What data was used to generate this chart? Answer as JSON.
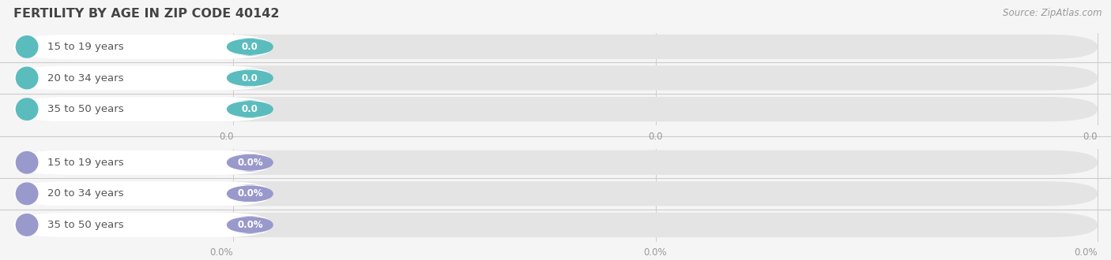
{
  "title": "FERTILITY BY AGE IN ZIP CODE 40142",
  "source": "Source: ZipAtlas.com",
  "background_color": "#f5f5f5",
  "figsize": [
    14.06,
    3.3
  ],
  "dpi": 100,
  "groups": [
    {
      "rows": [
        {
          "label": "15 to 19 years",
          "value_str": "0.0"
        },
        {
          "label": "20 to 34 years",
          "value_str": "0.0"
        },
        {
          "label": "35 to 50 years",
          "value_str": "0.0"
        }
      ],
      "circle_color": "#5bbcbd",
      "badge_color": "#5bbcbd",
      "badge_text_color": "#ffffff",
      "label_text_color": "#555555",
      "ticks": [
        "0.0",
        "0.0",
        "0.0"
      ]
    },
    {
      "rows": [
        {
          "label": "15 to 19 years",
          "value_str": "0.0%"
        },
        {
          "label": "20 to 34 years",
          "value_str": "0.0%"
        },
        {
          "label": "35 to 50 years",
          "value_str": "0.0%"
        }
      ],
      "circle_color": "#9999cc",
      "badge_color": "#9999cc",
      "badge_text_color": "#ffffff",
      "label_text_color": "#555555",
      "ticks": [
        "0.0%",
        "0.0%",
        "0.0%"
      ]
    }
  ]
}
